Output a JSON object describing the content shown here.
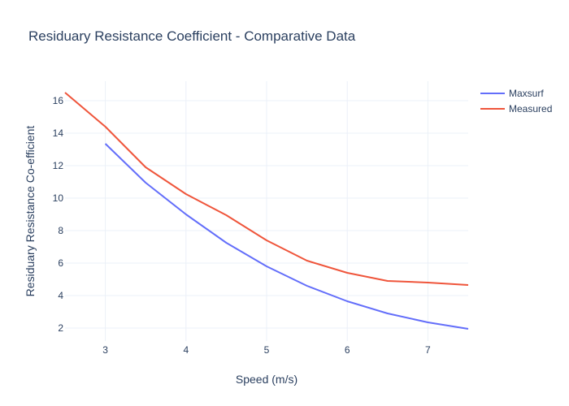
{
  "chart_data": {
    "type": "line",
    "title": "Residuary Resistance Coefficient - Comparative Data",
    "xlabel": "Speed (m/s)",
    "ylabel": "Residuary Resistance Co-efficient",
    "xlim": [
      2.5,
      7.5
    ],
    "ylim": [
      1.2,
      17.2
    ],
    "xticks": [
      3,
      4,
      5,
      6,
      7
    ],
    "yticks": [
      2,
      4,
      6,
      8,
      10,
      12,
      14,
      16
    ],
    "grid": true,
    "legend_position": "top-right",
    "series": [
      {
        "name": "Maxsurf",
        "color": "#636efa",
        "x": [
          3,
          3.5,
          4,
          4.5,
          5,
          5.5,
          6,
          6.5,
          7,
          7.5
        ],
        "y": [
          13.35,
          10.95,
          9.0,
          7.25,
          5.8,
          4.6,
          3.65,
          2.9,
          2.35,
          1.95
        ]
      },
      {
        "name": "Measured",
        "color": "#ef553b",
        "x": [
          2.5,
          3,
          3.5,
          4,
          4.5,
          5,
          5.5,
          6,
          6.5,
          7,
          7.5
        ],
        "y": [
          16.5,
          14.4,
          11.9,
          10.25,
          8.95,
          7.4,
          6.15,
          5.4,
          4.9,
          4.8,
          4.65
        ]
      }
    ]
  }
}
